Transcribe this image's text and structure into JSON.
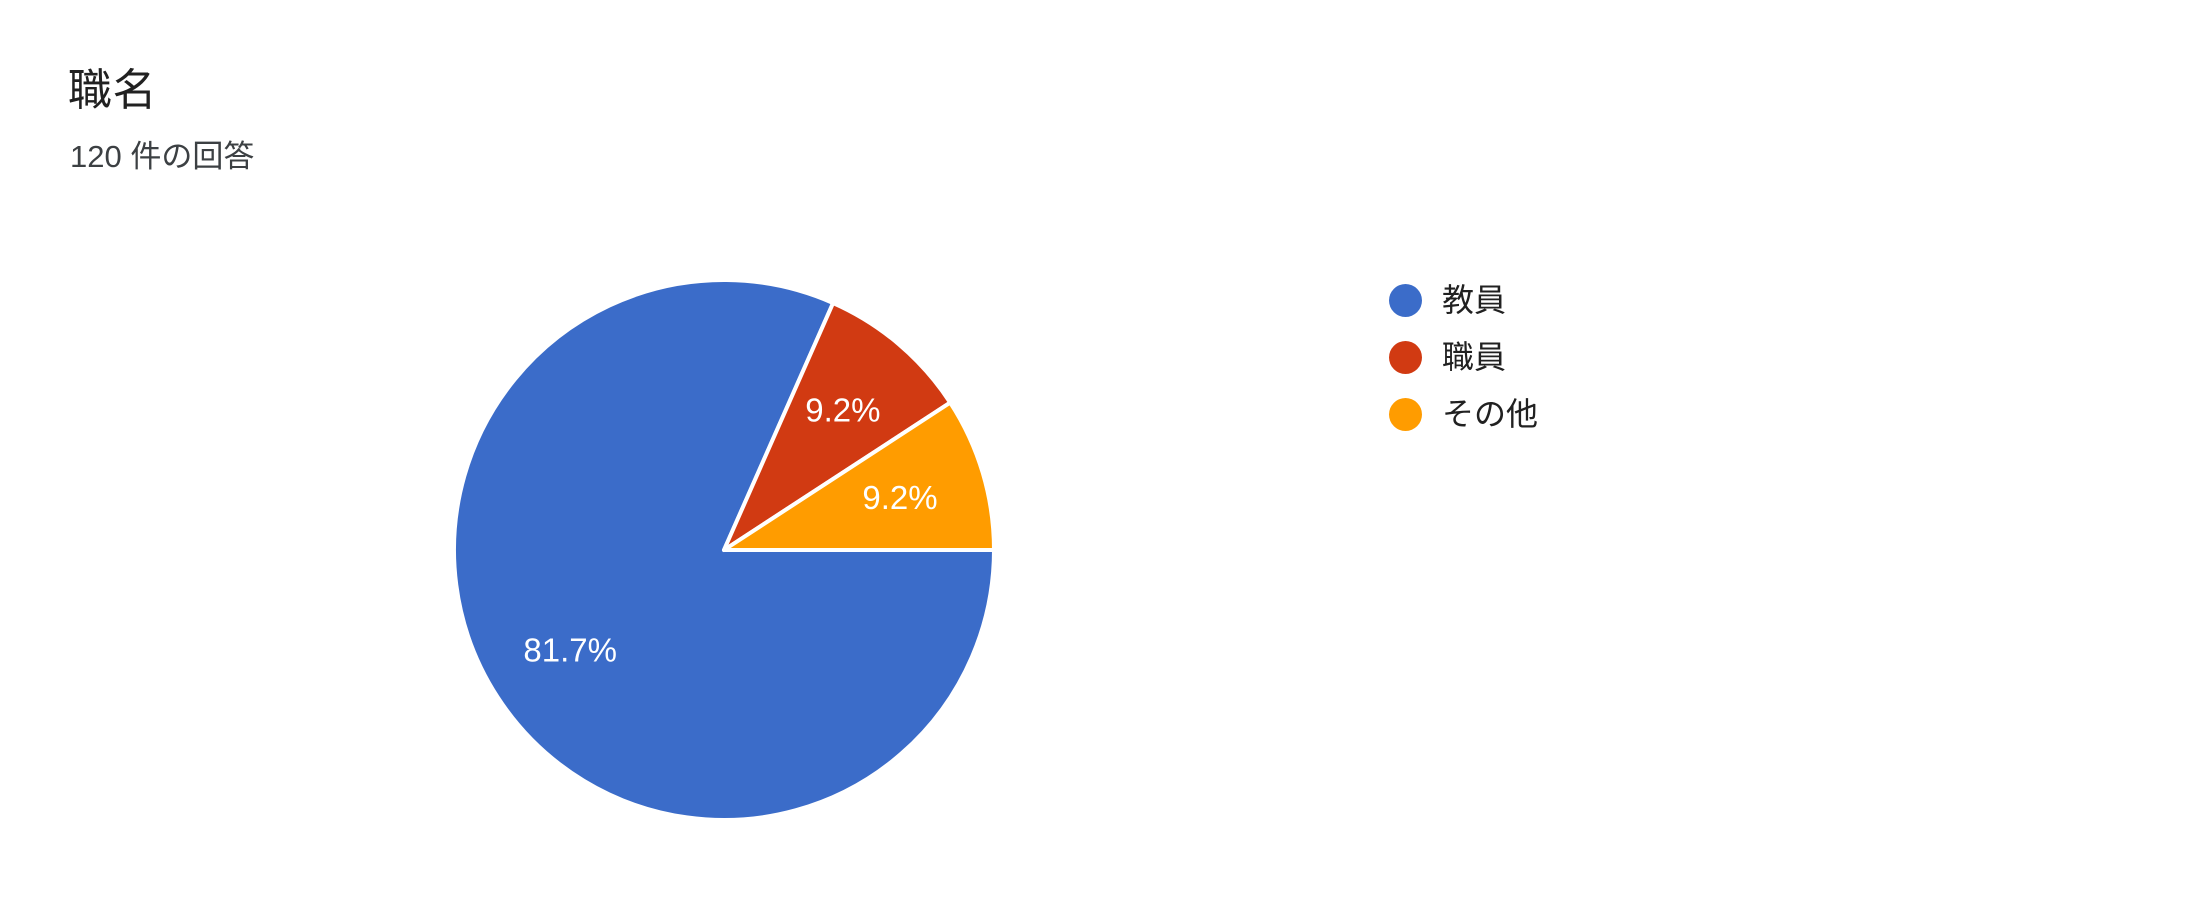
{
  "header": {
    "title": "職名",
    "subtitle": "120 件の回答"
  },
  "chart_data": {
    "type": "pie",
    "title": "職名",
    "subtitle": "120 件の回答",
    "total_responses_text": "120 件の回答",
    "categories": [
      "教員",
      "職員",
      "その他"
    ],
    "values": [
      81.7,
      9.2,
      9.2
    ],
    "slices": [
      {
        "label": "教員",
        "percent": 81.7,
        "display": "81.7%",
        "color": "#3B6CC9"
      },
      {
        "label": "職員",
        "percent": 9.2,
        "display": "9.2%",
        "color": "#D13A12"
      },
      {
        "label": "その他",
        "percent": 9.2,
        "display": "9.2%",
        "color": "#FF9C00"
      }
    ],
    "start_angle_deg": 90,
    "direction": "clockwise",
    "legend_position": "right",
    "slice_label_color": "#ffffff",
    "separator_color": "#ffffff",
    "background_color": "#ffffff",
    "title_color": "#212121",
    "subtitle_color": "#3c4043"
  }
}
